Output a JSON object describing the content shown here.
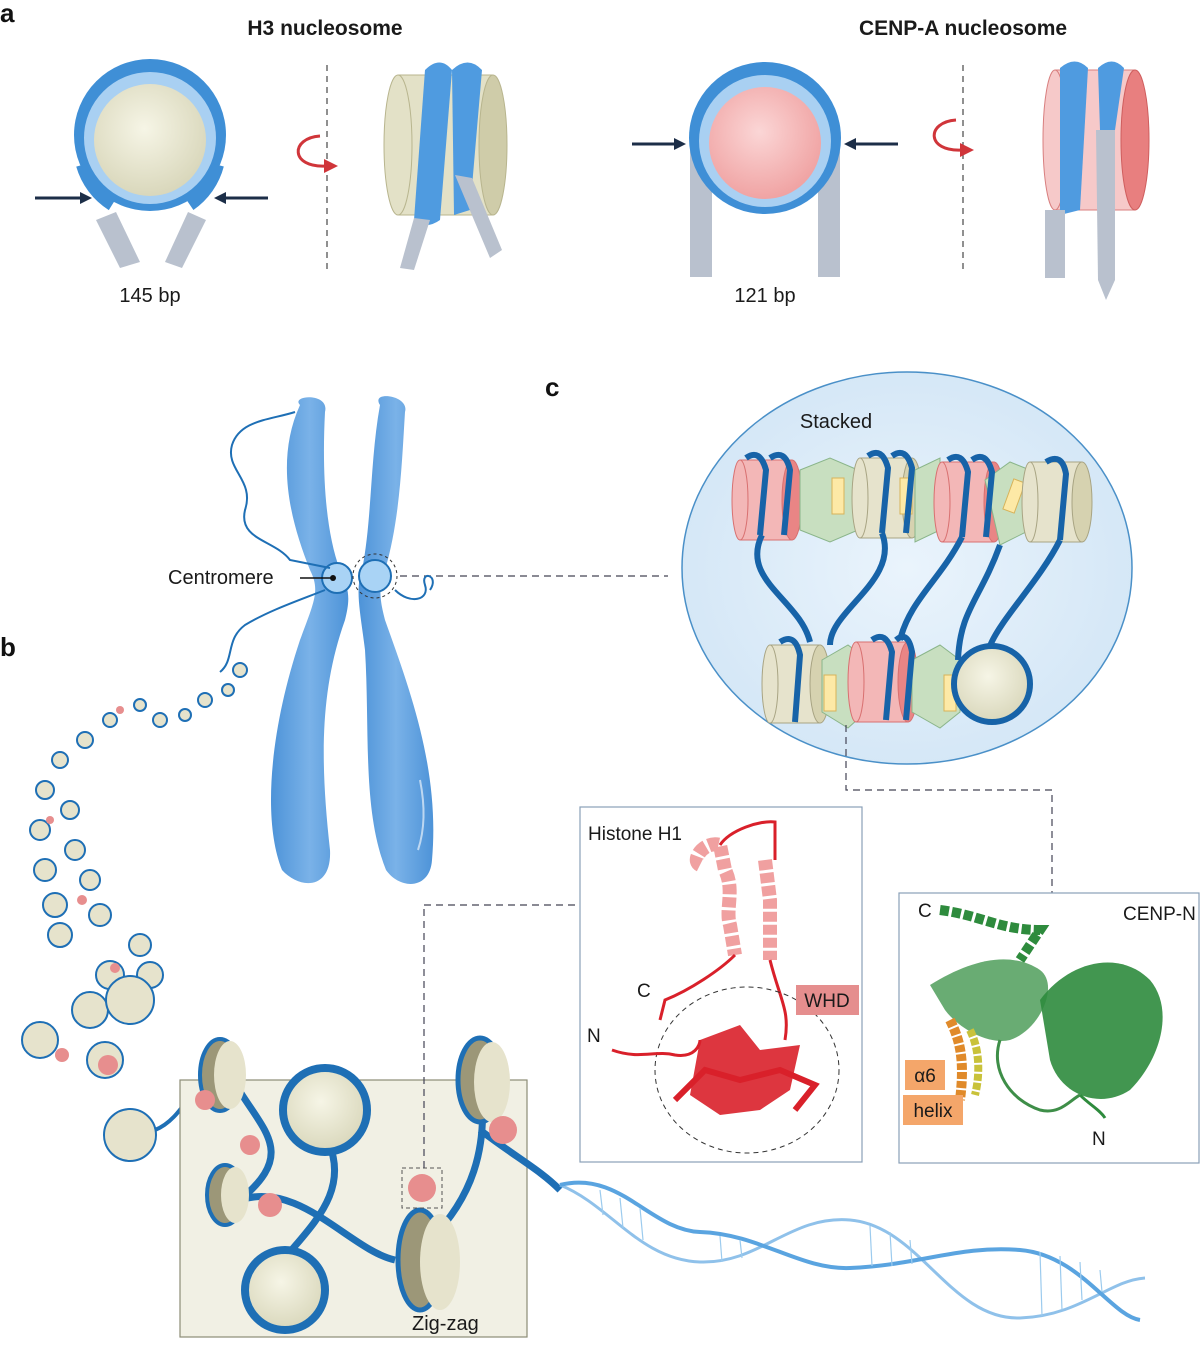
{
  "panels": {
    "a": "a",
    "b": "b",
    "c": "c"
  },
  "panel_a": {
    "h3": {
      "title": "H3 nucleosome",
      "bp": "145 bp"
    },
    "cenpa": {
      "title": "CENP-A nucleosome",
      "bp": "121 bp"
    }
  },
  "panel_b": {
    "centromere_label": "Centromere",
    "zigzag_label": "Zig-zag"
  },
  "panel_c": {
    "stacked_label": "Stacked"
  },
  "histone_h1": {
    "title": "Histone H1",
    "domain_label": "WHD",
    "c_terminus": "C",
    "n_terminus": "N"
  },
  "cenp_n": {
    "title": "CENP-N",
    "helix_label_1": "α6",
    "helix_label_2": "helix",
    "c_terminus": "C",
    "n_terminus": "N"
  },
  "colors": {
    "dna_blue": "#1e6fb5",
    "h3_core": "#e8e6cf",
    "cenpa_core": "#f2b6b6",
    "linker_grey": "#b9c1ce",
    "arrow_red": "#d0353a",
    "h1_red": "#d9202a",
    "cenpn_green": "#2e8b3d"
  }
}
